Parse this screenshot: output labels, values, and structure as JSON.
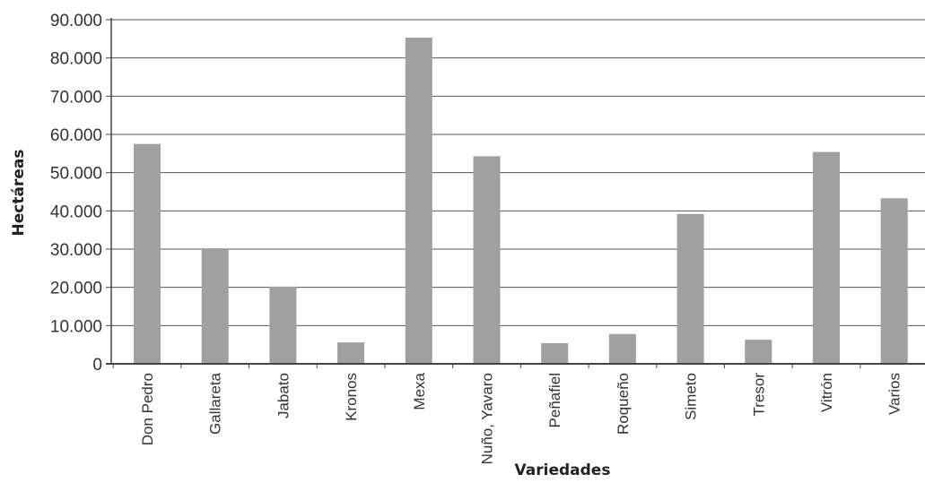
{
  "chart_data": {
    "type": "bar",
    "categories": [
      "Don Pedro",
      "Gallareta",
      "Jabato",
      "Kronos",
      "Mexa",
      "Nuño, Yavaro",
      "Peñafiel",
      "Roqueño",
      "Simeto",
      "Tresor",
      "Vitrón",
      "Varios"
    ],
    "values": [
      57500,
      29800,
      20200,
      5600,
      85300,
      54300,
      5400,
      7800,
      39200,
      6300,
      55400,
      43300
    ],
    "xlabel": "Variedades",
    "ylabel": "Hectáreas",
    "ylim": [
      0,
      90000
    ],
    "yticks": [
      0,
      10000,
      20000,
      30000,
      40000,
      50000,
      60000,
      70000,
      80000,
      90000
    ],
    "ytick_labels": [
      "0",
      "10.000",
      "20.000",
      "30.000",
      "40.000",
      "50.000",
      "60.000",
      "70.000",
      "80.000",
      "90.000"
    ],
    "grid": true,
    "bar_color": "#a0a0a0",
    "grid_color": "#555555"
  }
}
